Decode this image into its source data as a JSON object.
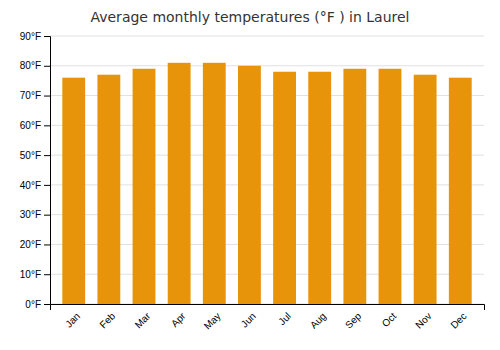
{
  "chart_data": {
    "type": "bar",
    "title": "Average monthly temperatures (°F ) in Laurel",
    "categories": [
      "Jan",
      "Feb",
      "Mar",
      "Apr",
      "May",
      "Jun",
      "Jul",
      "Aug",
      "Sep",
      "Oct",
      "Nov",
      "Dec"
    ],
    "values": [
      76,
      77,
      79,
      81,
      81,
      80,
      78,
      78,
      79,
      79,
      77,
      76
    ],
    "color": "#E8940A",
    "ylim": [
      0,
      90
    ],
    "yticks": [
      {
        "value": 0,
        "label": "0°F"
      },
      {
        "value": 10,
        "label": "10°F"
      },
      {
        "value": 20,
        "label": "20°F"
      },
      {
        "value": 30,
        "label": "30°F"
      },
      {
        "value": 40,
        "label": "40°F"
      },
      {
        "value": 50,
        "label": "50°F"
      },
      {
        "value": 60,
        "label": "60°F"
      },
      {
        "value": 70,
        "label": "70°F"
      },
      {
        "value": 80,
        "label": "80°F"
      },
      {
        "value": 90,
        "label": "90°F"
      }
    ],
    "grid": true
  }
}
